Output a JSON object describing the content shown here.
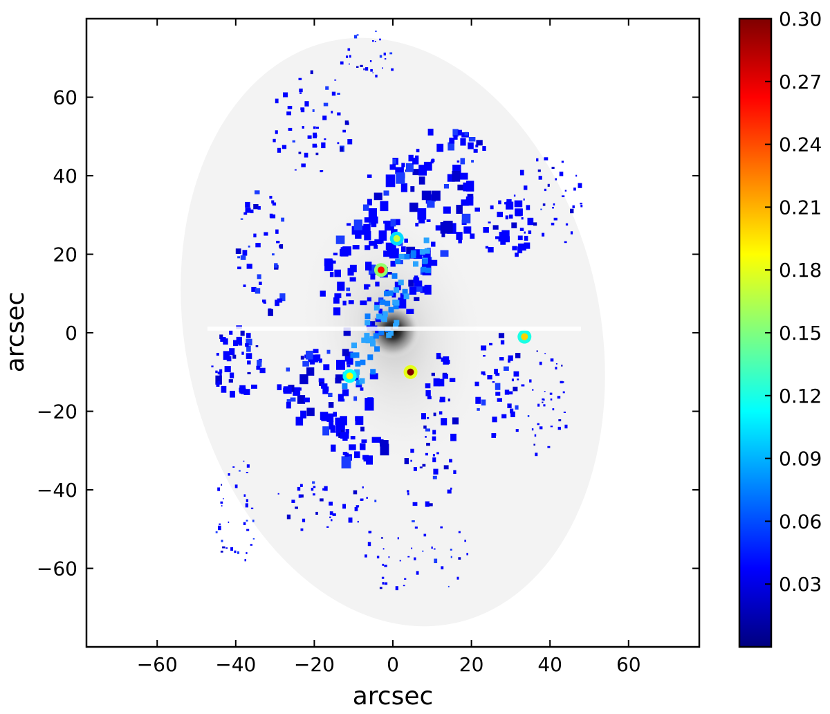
{
  "chart_data": {
    "type": "heatmap",
    "title": "",
    "xlabel": "arcsec",
    "ylabel": "arcsec",
    "xlim": [
      -78,
      78
    ],
    "ylim": [
      -80,
      80
    ],
    "x_ticks": [
      {
        "value": -60,
        "label": "−60"
      },
      {
        "value": -40,
        "label": "−40"
      },
      {
        "value": -20,
        "label": "−20"
      },
      {
        "value": 0,
        "label": "0"
      },
      {
        "value": 20,
        "label": "20"
      },
      {
        "value": 40,
        "label": "40"
      },
      {
        "value": 60,
        "label": "60"
      }
    ],
    "y_ticks": [
      {
        "value": 60,
        "label": "60"
      },
      {
        "value": 40,
        "label": "40"
      },
      {
        "value": 20,
        "label": "20"
      },
      {
        "value": 0,
        "label": "0"
      },
      {
        "value": -20,
        "label": "−20"
      },
      {
        "value": -40,
        "label": "−40"
      },
      {
        "value": -60,
        "label": "−60"
      }
    ],
    "background": "greyscale galaxy image, bright nucleus at (0, 0)",
    "grid": false,
    "colorbar": {
      "position": "right",
      "colormap": "jet",
      "range": [
        0,
        0.3
      ],
      "ticks": [
        {
          "value": 0.03,
          "label": "0.03"
        },
        {
          "value": 0.06,
          "label": "0.06"
        },
        {
          "value": 0.09,
          "label": "0.09"
        },
        {
          "value": 0.12,
          "label": "0.12"
        },
        {
          "value": 0.15,
          "label": "0.15"
        },
        {
          "value": 0.18,
          "label": "0.18"
        },
        {
          "value": 0.21,
          "label": "0.21"
        },
        {
          "value": 0.24,
          "label": "0.24"
        },
        {
          "value": 0.27,
          "label": "0.27"
        },
        {
          "value": 0.3,
          "label": "0.30"
        }
      ],
      "stops": [
        "#00007f",
        "#0000ff",
        "#007fff",
        "#00ffff",
        "#7fff7f",
        "#ffff00",
        "#ff7f00",
        "#ff0000",
        "#7f0000"
      ]
    },
    "features": [
      {
        "kind": "nucleus",
        "x": 0,
        "y": 0
      },
      {
        "kind": "peak",
        "x": -3,
        "y": 16,
        "value": 0.26
      },
      {
        "kind": "peak",
        "x": 4.5,
        "y": -10,
        "value": 0.3
      },
      {
        "kind": "peak",
        "x": 33.5,
        "y": -1,
        "value": 0.2
      },
      {
        "kind": "peak",
        "x": -11,
        "y": -11,
        "value": 0.19
      },
      {
        "kind": "peak",
        "x": 1,
        "y": 24,
        "value": 0.17
      }
    ]
  }
}
